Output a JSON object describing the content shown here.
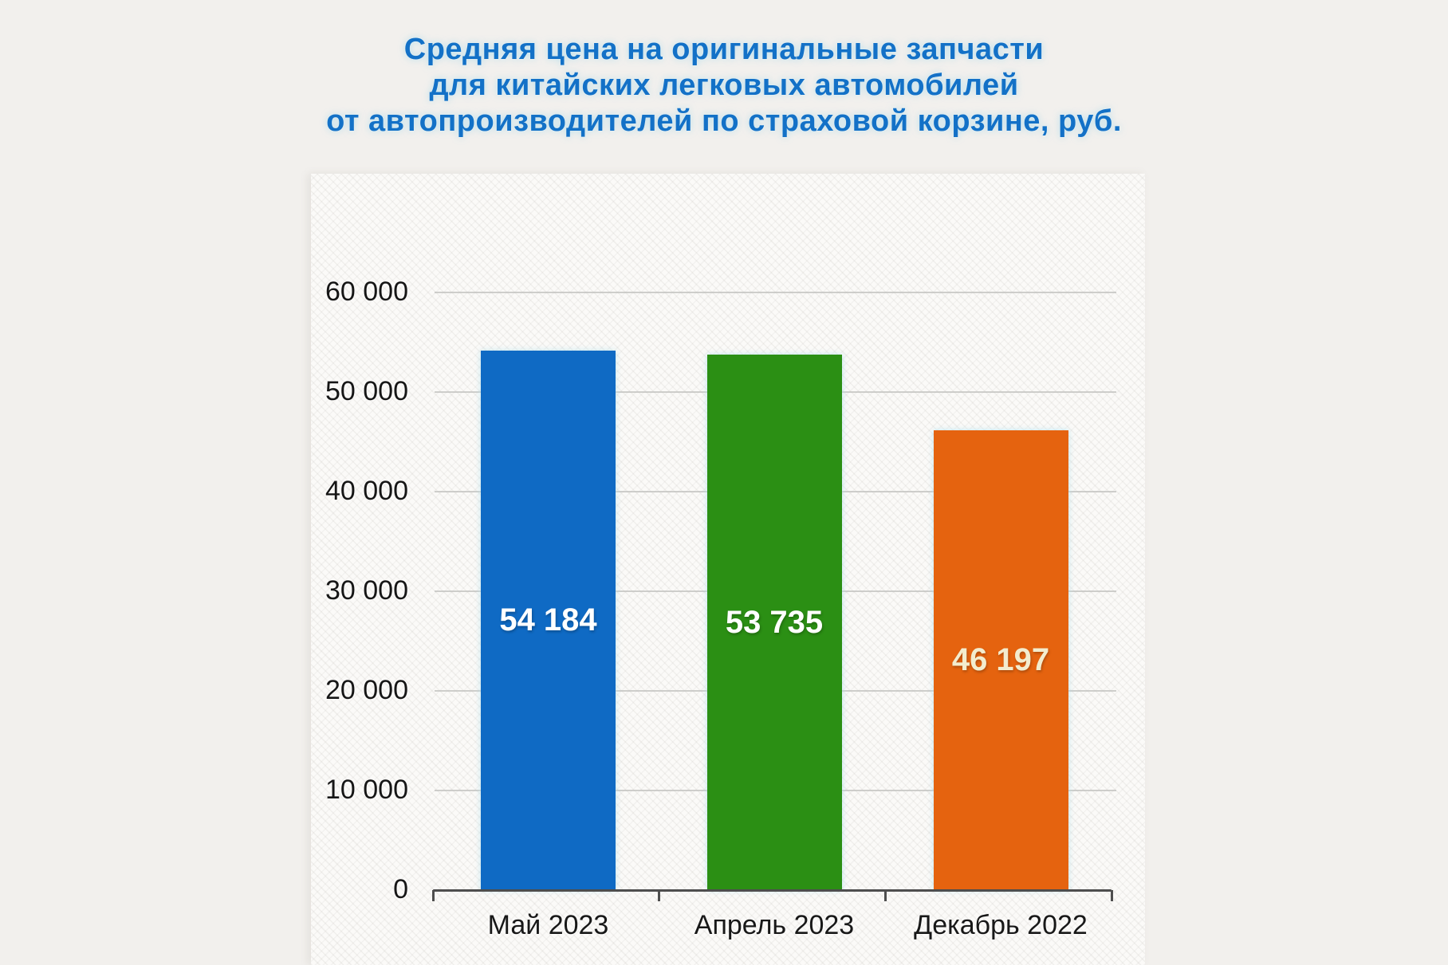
{
  "title": {
    "lines": [
      "Средняя цена на оригинальные запчасти",
      "для китайских легковых автомобилей",
      "от автопроизводителей по страховой корзине, руб."
    ],
    "color": "#1371c7"
  },
  "chart_data": {
    "type": "bar",
    "title": "Средняя цена на оригинальные запчасти для китайских легковых автомобилей от автопроизводителей по страховой корзине, руб.",
    "categories": [
      "Май 2023",
      "Апрель 2023",
      "Декабрь 2022"
    ],
    "values": [
      54184,
      53735,
      46197
    ],
    "value_labels": [
      "54 184",
      "53 735",
      "46 197"
    ],
    "bar_colors": [
      "#0f6ac4",
      "#2b8f14",
      "#e5630f"
    ],
    "value_label_colors": [
      "#ffffff",
      "#ffffff",
      "#f3ecce"
    ],
    "xlabel": "",
    "ylabel": "",
    "ylim": [
      0,
      60000
    ],
    "ytick_step": 10000,
    "ytick_labels": [
      "60 000",
      "50 000",
      "40 000",
      "30 000",
      "20 000",
      "10 000",
      "0"
    ],
    "grid": true,
    "legend": false
  }
}
